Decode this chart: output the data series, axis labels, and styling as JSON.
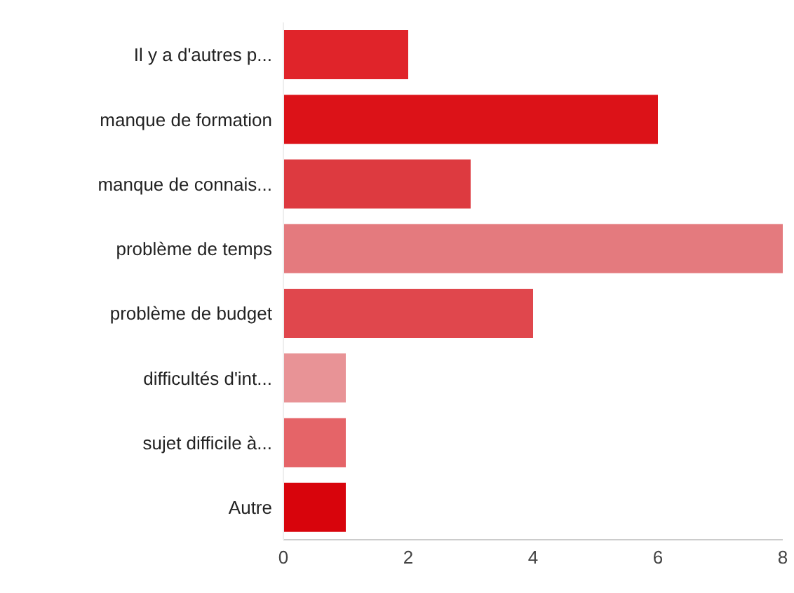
{
  "chart_data": {
    "type": "bar",
    "orientation": "horizontal",
    "categories": [
      "Il y a d'autres p...",
      "manque de formation",
      "manque de connais...",
      "problème de temps",
      "problème de budget",
      "difficultés d'int...",
      "sujet difficile à...",
      "Autre"
    ],
    "values": [
      2,
      6,
      3,
      8,
      4,
      1,
      1,
      1
    ],
    "colors": [
      "#e0242a",
      "#dc1218",
      "#dd3a40",
      "#e47a7e",
      "#e0474d",
      "#e89396",
      "#e56468",
      "#d8040c"
    ],
    "xlim": [
      0,
      8
    ],
    "xticks": [
      0,
      2,
      4,
      6,
      8
    ],
    "grid": false,
    "legend": false
  }
}
